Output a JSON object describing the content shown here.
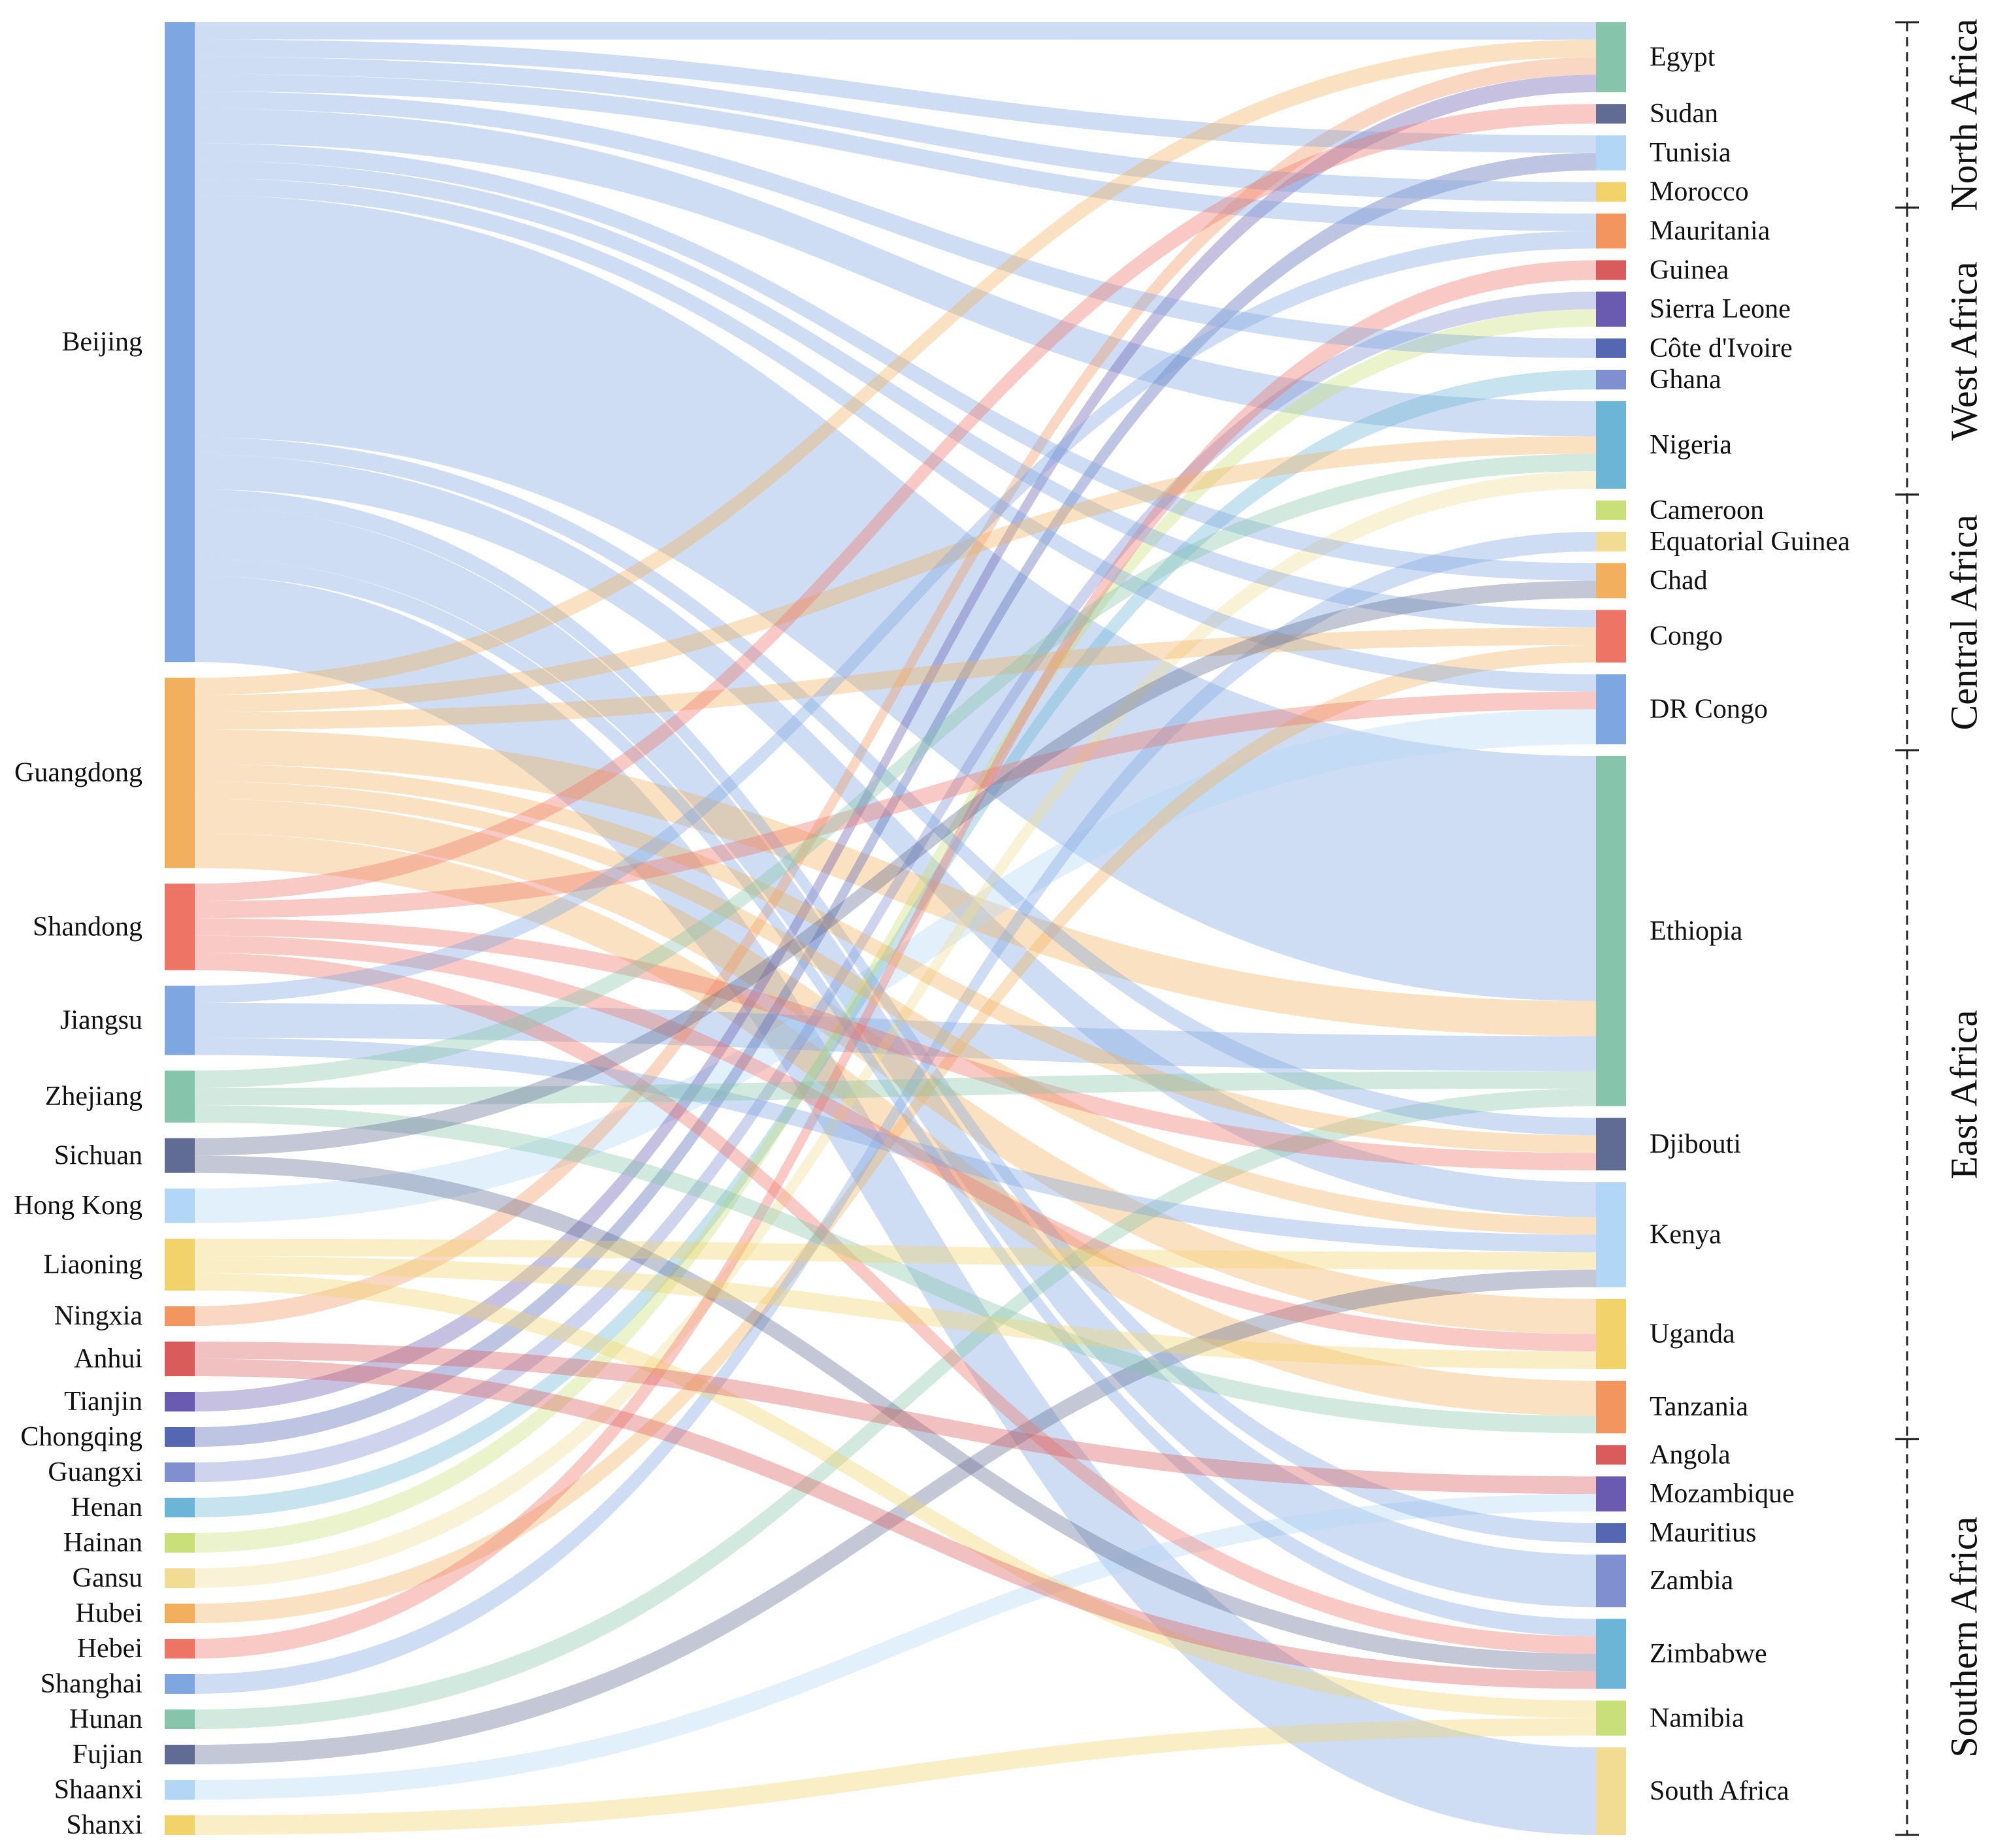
{
  "chart_data": {
    "type": "sankey",
    "title": "",
    "sources": [
      {
        "name": "Beijing",
        "color": "#7ea6e0"
      },
      {
        "name": "Guangdong",
        "color": "#f2b05e"
      },
      {
        "name": "Shandong",
        "color": "#ee7466"
      },
      {
        "name": "Jiangsu",
        "color": "#7ea6e0"
      },
      {
        "name": "Zhejiang",
        "color": "#86c4ac"
      },
      {
        "name": "Sichuan",
        "color": "#606c93"
      },
      {
        "name": "Hong Kong",
        "color": "#b2d7f6"
      },
      {
        "name": "Liaoning",
        "color": "#f2d36b"
      },
      {
        "name": "Ningxia",
        "color": "#f2955e"
      },
      {
        "name": "Anhui",
        "color": "#d95b5b"
      },
      {
        "name": "Tianjin",
        "color": "#6a5ab0"
      },
      {
        "name": "Chongqing",
        "color": "#5566b3"
      },
      {
        "name": "Guangxi",
        "color": "#7f8fcf"
      },
      {
        "name": "Henan",
        "color": "#6cb5d6"
      },
      {
        "name": "Hainan",
        "color": "#c9e07a"
      },
      {
        "name": "Gansu",
        "color": "#f2dc94"
      },
      {
        "name": "Hubei",
        "color": "#f2b05e"
      },
      {
        "name": "Hebei",
        "color": "#ee7466"
      },
      {
        "name": "Shanghai",
        "color": "#7ea6e0"
      },
      {
        "name": "Hunan",
        "color": "#86c4ac"
      },
      {
        "name": "Fujian",
        "color": "#606c93"
      },
      {
        "name": "Shaanxi",
        "color": "#b2d7f6"
      },
      {
        "name": "Shanxi",
        "color": "#f2d36b"
      }
    ],
    "targets": [
      {
        "name": "Egypt",
        "color": "#86c4ac"
      },
      {
        "name": "Sudan",
        "color": "#606c93"
      },
      {
        "name": "Tunisia",
        "color": "#b2d7f6"
      },
      {
        "name": "Morocco",
        "color": "#f2d36b"
      },
      {
        "name": "Mauritania",
        "color": "#f2955e"
      },
      {
        "name": "Guinea",
        "color": "#d95b5b"
      },
      {
        "name": "Sierra Leone",
        "color": "#6a5ab0"
      },
      {
        "name": "Côte d'Ivoire",
        "color": "#5566b3"
      },
      {
        "name": "Ghana",
        "color": "#7f8fcf"
      },
      {
        "name": "Nigeria",
        "color": "#6cb5d6"
      },
      {
        "name": "Cameroon",
        "color": "#c9e07a"
      },
      {
        "name": "Equatorial Guinea",
        "color": "#f2dc94"
      },
      {
        "name": "Chad",
        "color": "#f2b05e"
      },
      {
        "name": "Congo",
        "color": "#ee7466"
      },
      {
        "name": "DR Congo",
        "color": "#7ea6e0"
      },
      {
        "name": "Ethiopia",
        "color": "#86c4ac"
      },
      {
        "name": "Djibouti",
        "color": "#606c93"
      },
      {
        "name": "Kenya",
        "color": "#b2d7f6"
      },
      {
        "name": "Uganda",
        "color": "#f2d36b"
      },
      {
        "name": "Tanzania",
        "color": "#f2955e"
      },
      {
        "name": "Angola",
        "color": "#d95b5b"
      },
      {
        "name": "Mozambique",
        "color": "#6a5ab0"
      },
      {
        "name": "Mauritius",
        "color": "#5566b3"
      },
      {
        "name": "Zambia",
        "color": "#7f8fcf"
      },
      {
        "name": "Zimbabwe",
        "color": "#6cb5d6"
      },
      {
        "name": "Namibia",
        "color": "#c9e07a"
      },
      {
        "name": "South Africa",
        "color": "#f2dc94"
      }
    ],
    "regions": [
      {
        "name": "North Africa",
        "from": "Egypt",
        "to": "Morocco"
      },
      {
        "name": "West Africa",
        "from": "Mauritania",
        "to": "Nigeria"
      },
      {
        "name": "Central Africa",
        "from": "Cameroon",
        "to": "DR Congo"
      },
      {
        "name": "East Africa",
        "from": "Ethiopia",
        "to": "Tanzania"
      },
      {
        "name": "Southern Africa",
        "from": "Angola",
        "to": "South Africa"
      }
    ],
    "flows": [
      {
        "source": "Beijing",
        "target": "Egypt",
        "value": 1
      },
      {
        "source": "Beijing",
        "target": "Ethiopia",
        "value": 14
      },
      {
        "source": "Beijing",
        "target": "South Africa",
        "value": 5
      },
      {
        "source": "Beijing",
        "target": "Zambia",
        "value": 3
      },
      {
        "source": "Beijing",
        "target": "Kenya",
        "value": 2
      },
      {
        "source": "Beijing",
        "target": "Nigeria",
        "value": 2
      },
      {
        "source": "Beijing",
        "target": "Tunisia",
        "value": 1
      },
      {
        "source": "Beijing",
        "target": "Morocco",
        "value": 1
      },
      {
        "source": "Beijing",
        "target": "Mauritania",
        "value": 1
      },
      {
        "source": "Beijing",
        "target": "Côte d'Ivoire",
        "value": 1
      },
      {
        "source": "Beijing",
        "target": "Congo",
        "value": 1
      },
      {
        "source": "Beijing",
        "target": "DR Congo",
        "value": 1
      },
      {
        "source": "Beijing",
        "target": "Djibouti",
        "value": 1
      },
      {
        "source": "Beijing",
        "target": "Mauritius",
        "value": 1
      },
      {
        "source": "Beijing",
        "target": "Zimbabwe",
        "value": 1
      },
      {
        "source": "Beijing",
        "target": "Chad",
        "value": 1
      },
      {
        "source": "Guangdong",
        "target": "Egypt",
        "value": 1
      },
      {
        "source": "Guangdong",
        "target": "Nigeria",
        "value": 1
      },
      {
        "source": "Guangdong",
        "target": "Ethiopia",
        "value": 2
      },
      {
        "source": "Guangdong",
        "target": "Uganda",
        "value": 2
      },
      {
        "source": "Guangdong",
        "target": "Tanzania",
        "value": 2
      },
      {
        "source": "Guangdong",
        "target": "Djibouti",
        "value": 1
      },
      {
        "source": "Guangdong",
        "target": "Kenya",
        "value": 1
      },
      {
        "source": "Guangdong",
        "target": "Congo",
        "value": 1
      },
      {
        "source": "Shandong",
        "target": "Sudan",
        "value": 1
      },
      {
        "source": "Shandong",
        "target": "DR Congo",
        "value": 1
      },
      {
        "source": "Shandong",
        "target": "Djibouti",
        "value": 1
      },
      {
        "source": "Shandong",
        "target": "Uganda",
        "value": 1
      },
      {
        "source": "Shandong",
        "target": "Zimbabwe",
        "value": 1
      },
      {
        "source": "Jiangsu",
        "target": "Ethiopia",
        "value": 2
      },
      {
        "source": "Jiangsu",
        "target": "Mauritania",
        "value": 1
      },
      {
        "source": "Jiangsu",
        "target": "Kenya",
        "value": 1
      },
      {
        "source": "Zhejiang",
        "target": "Nigeria",
        "value": 1
      },
      {
        "source": "Zhejiang",
        "target": "Ethiopia",
        "value": 1
      },
      {
        "source": "Zhejiang",
        "target": "Tanzania",
        "value": 1
      },
      {
        "source": "Sichuan",
        "target": "Chad",
        "value": 1
      },
      {
        "source": "Sichuan",
        "target": "Zimbabwe",
        "value": 1
      },
      {
        "source": "Hong Kong",
        "target": "DR Congo",
        "value": 2
      },
      {
        "source": "Liaoning",
        "target": "Kenya",
        "value": 1
      },
      {
        "source": "Liaoning",
        "target": "Uganda",
        "value": 1
      },
      {
        "source": "Liaoning",
        "target": "Namibia",
        "value": 1
      },
      {
        "source": "Ningxia",
        "target": "Egypt",
        "value": 1
      },
      {
        "source": "Anhui",
        "target": "Mozambique",
        "value": 1
      },
      {
        "source": "Anhui",
        "target": "Zimbabwe",
        "value": 1
      },
      {
        "source": "Tianjin",
        "target": "Egypt",
        "value": 1
      },
      {
        "source": "Chongqing",
        "target": "Tunisia",
        "value": 1
      },
      {
        "source": "Guangxi",
        "target": "Sierra Leone",
        "value": 1
      },
      {
        "source": "Henan",
        "target": "Ghana",
        "value": 1
      },
      {
        "source": "Hainan",
        "target": "Sierra Leone",
        "value": 1
      },
      {
        "source": "Gansu",
        "target": "Nigeria",
        "value": 1
      },
      {
        "source": "Hubei",
        "target": "Congo",
        "value": 1
      },
      {
        "source": "Hebei",
        "target": "Guinea",
        "value": 1
      },
      {
        "source": "Shanghai",
        "target": "Equatorial Guinea",
        "value": 1
      },
      {
        "source": "Hunan",
        "target": "Ethiopia",
        "value": 1
      },
      {
        "source": "Fujian",
        "target": "Kenya",
        "value": 1
      },
      {
        "source": "Shaanxi",
        "target": "Mozambique",
        "value": 1
      },
      {
        "source": "Shanxi",
        "target": "Namibia",
        "value": 1
      }
    ]
  }
}
